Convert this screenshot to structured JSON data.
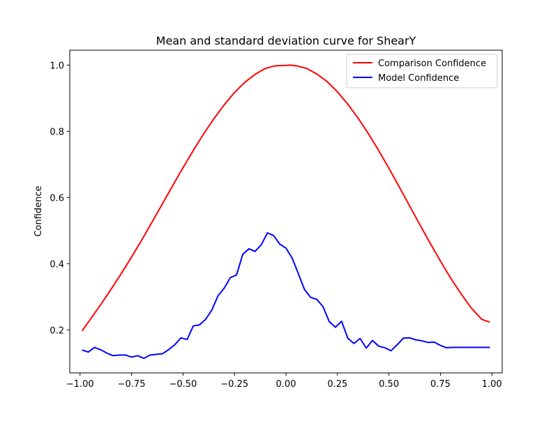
{
  "chart_data": {
    "type": "line",
    "title": "Mean and standard deviation curve for ShearY",
    "xlabel": "",
    "ylabel": "Confidence",
    "xlim": [
      -1.05,
      1.05
    ],
    "ylim": [
      0.07,
      1.045
    ],
    "x_ticks": [
      -1.0,
      -0.75,
      -0.5,
      -0.25,
      0.0,
      0.25,
      0.5,
      0.75,
      1.0
    ],
    "x_tick_labels": [
      "−1.00",
      "−0.75",
      "−0.50",
      "−0.25",
      "0.00",
      "0.25",
      "0.50",
      "0.75",
      "1.00"
    ],
    "y_ticks": [
      0.2,
      0.4,
      0.6,
      0.8,
      1.0
    ],
    "y_tick_labels": [
      "0.2",
      "0.4",
      "0.6",
      "0.8",
      "1.0"
    ],
    "grid": false,
    "legend_position": "top-right",
    "series": [
      {
        "name": "Comparison Confidence",
        "color": "#ff0000",
        "x": [
          -0.99,
          -0.95,
          -0.9,
          -0.85,
          -0.8,
          -0.75,
          -0.7,
          -0.65,
          -0.6,
          -0.55,
          -0.5,
          -0.45,
          -0.4,
          -0.35,
          -0.3,
          -0.25,
          -0.2,
          -0.15,
          -0.1,
          -0.05,
          0.0,
          0.02,
          0.05,
          0.1,
          0.15,
          0.2,
          0.25,
          0.3,
          0.35,
          0.4,
          0.45,
          0.5,
          0.55,
          0.6,
          0.65,
          0.7,
          0.75,
          0.8,
          0.85,
          0.9,
          0.95,
          0.99
        ],
        "y": [
          0.197,
          0.232,
          0.276,
          0.322,
          0.37,
          0.42,
          0.472,
          0.526,
          0.581,
          0.636,
          0.69,
          0.742,
          0.792,
          0.838,
          0.88,
          0.917,
          0.948,
          0.972,
          0.99,
          0.998,
          0.999,
          1.0,
          0.998,
          0.99,
          0.973,
          0.95,
          0.919,
          0.882,
          0.84,
          0.793,
          0.742,
          0.688,
          0.632,
          0.575,
          0.518,
          0.462,
          0.408,
          0.356,
          0.309,
          0.266,
          0.232,
          0.223
        ]
      },
      {
        "name": "Model Confidence",
        "color": "#0000ff",
        "x": [
          -0.99,
          -0.96,
          -0.93,
          -0.9,
          -0.87,
          -0.84,
          -0.81,
          -0.78,
          -0.75,
          -0.72,
          -0.69,
          -0.66,
          -0.63,
          -0.6,
          -0.57,
          -0.54,
          -0.51,
          -0.48,
          -0.45,
          -0.42,
          -0.39,
          -0.36,
          -0.33,
          -0.3,
          -0.27,
          -0.24,
          -0.21,
          -0.18,
          -0.15,
          -0.12,
          -0.09,
          -0.06,
          -0.03,
          0.0,
          0.03,
          0.06,
          0.09,
          0.12,
          0.15,
          0.18,
          0.21,
          0.24,
          0.27,
          0.3,
          0.33,
          0.36,
          0.39,
          0.42,
          0.45,
          0.48,
          0.51,
          0.54,
          0.57,
          0.6,
          0.63,
          0.66,
          0.69,
          0.72,
          0.75,
          0.78,
          0.81,
          0.84,
          0.87,
          0.9,
          0.93,
          0.96,
          0.99
        ],
        "y": [
          0.139,
          0.133,
          0.147,
          0.14,
          0.13,
          0.122,
          0.124,
          0.124,
          0.118,
          0.122,
          0.114,
          0.124,
          0.126,
          0.128,
          0.14,
          0.155,
          0.176,
          0.171,
          0.212,
          0.215,
          0.232,
          0.26,
          0.303,
          0.326,
          0.358,
          0.366,
          0.428,
          0.445,
          0.437,
          0.457,
          0.493,
          0.485,
          0.459,
          0.447,
          0.417,
          0.37,
          0.322,
          0.298,
          0.292,
          0.27,
          0.225,
          0.208,
          0.226,
          0.175,
          0.159,
          0.174,
          0.145,
          0.168,
          0.151,
          0.146,
          0.137,
          0.155,
          0.175,
          0.176,
          0.17,
          0.167,
          0.162,
          0.163,
          0.153,
          0.146,
          0.147,
          0.147,
          0.147,
          0.147,
          0.147,
          0.147,
          0.147
        ]
      }
    ]
  }
}
